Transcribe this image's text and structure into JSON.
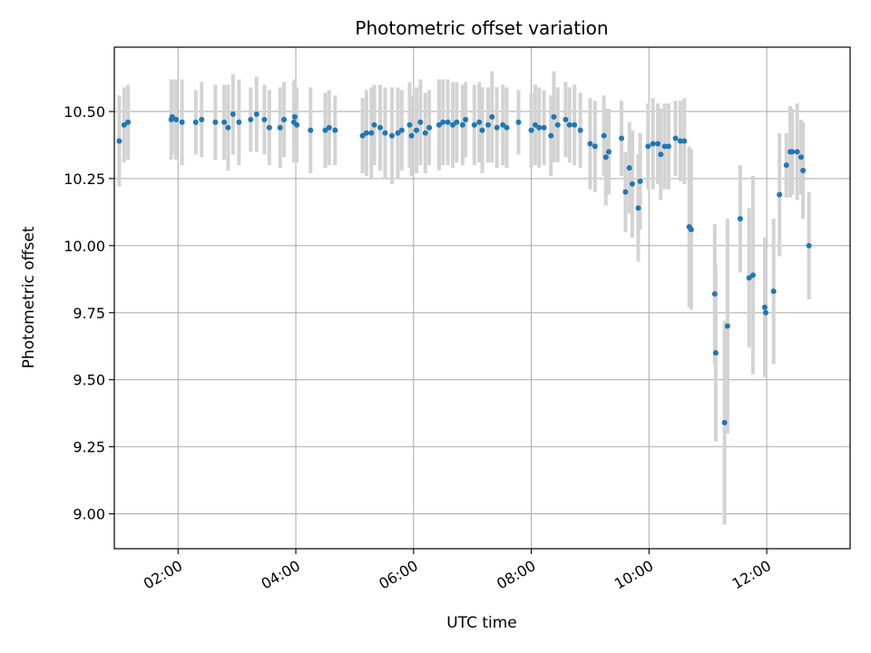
{
  "chart_data": {
    "type": "scatter",
    "title": "Photometric offset variation",
    "xlabel": "UTC time",
    "ylabel": "Photometric offset",
    "xlim": [
      "00:55",
      "13:25"
    ],
    "ylim": [
      8.87,
      10.74
    ],
    "x_ticks": [
      "02:00",
      "04:00",
      "06:00",
      "08:00",
      "10:00",
      "12:00"
    ],
    "y_ticks": [
      "9.00",
      "9.25",
      "9.50",
      "9.75",
      "10.00",
      "10.25",
      "10.50"
    ],
    "grid": true,
    "colors": {
      "point": "#1f77b4",
      "errorbar": "#d3d3d3",
      "grid": "#b0b0b0",
      "axes": "#000000"
    },
    "points": [
      {
        "x": "01:00",
        "y": 10.39,
        "err": 0.17
      },
      {
        "x": "01:05",
        "y": 10.45,
        "err": 0.14
      },
      {
        "x": "01:09",
        "y": 10.46,
        "err": 0.14
      },
      {
        "x": "01:53",
        "y": 10.47,
        "err": 0.15
      },
      {
        "x": "01:54",
        "y": 10.48,
        "err": 0.14
      },
      {
        "x": "01:58",
        "y": 10.47,
        "err": 0.15
      },
      {
        "x": "02:04",
        "y": 10.46,
        "err": 0.16
      },
      {
        "x": "02:18",
        "y": 10.46,
        "err": 0.12
      },
      {
        "x": "02:24",
        "y": 10.47,
        "err": 0.14
      },
      {
        "x": "02:38",
        "y": 10.46,
        "err": 0.14
      },
      {
        "x": "02:47",
        "y": 10.46,
        "err": 0.14
      },
      {
        "x": "02:51",
        "y": 10.44,
        "err": 0.16
      },
      {
        "x": "02:56",
        "y": 10.49,
        "err": 0.15
      },
      {
        "x": "03:02",
        "y": 10.46,
        "err": 0.16
      },
      {
        "x": "03:14",
        "y": 10.47,
        "err": 0.12
      },
      {
        "x": "03:20",
        "y": 10.49,
        "err": 0.14
      },
      {
        "x": "03:28",
        "y": 10.47,
        "err": 0.13
      },
      {
        "x": "03:33",
        "y": 10.44,
        "err": 0.14
      },
      {
        "x": "03:44",
        "y": 10.44,
        "err": 0.15
      },
      {
        "x": "03:48",
        "y": 10.47,
        "err": 0.14
      },
      {
        "x": "03:58",
        "y": 10.46,
        "err": 0.15
      },
      {
        "x": "03:59",
        "y": 10.48,
        "err": 0.14
      },
      {
        "x": "04:01",
        "y": 10.45,
        "err": 0.14
      },
      {
        "x": "04:15",
        "y": 10.43,
        "err": 0.16
      },
      {
        "x": "04:30",
        "y": 10.43,
        "err": 0.14
      },
      {
        "x": "04:34",
        "y": 10.44,
        "err": 0.14
      },
      {
        "x": "04:40",
        "y": 10.43,
        "err": 0.13
      },
      {
        "x": "05:08",
        "y": 10.41,
        "err": 0.14
      },
      {
        "x": "05:12",
        "y": 10.42,
        "err": 0.16
      },
      {
        "x": "05:17",
        "y": 10.42,
        "err": 0.17
      },
      {
        "x": "05:20",
        "y": 10.45,
        "err": 0.15
      },
      {
        "x": "05:26",
        "y": 10.44,
        "err": 0.16
      },
      {
        "x": "05:31",
        "y": 10.42,
        "err": 0.17
      },
      {
        "x": "05:38",
        "y": 10.41,
        "err": 0.18
      },
      {
        "x": "05:44",
        "y": 10.42,
        "err": 0.17
      },
      {
        "x": "05:48",
        "y": 10.43,
        "err": 0.15
      },
      {
        "x": "05:56",
        "y": 10.45,
        "err": 0.16
      },
      {
        "x": "05:58",
        "y": 10.41,
        "err": 0.15
      },
      {
        "x": "06:03",
        "y": 10.43,
        "err": 0.16
      },
      {
        "x": "06:07",
        "y": 10.46,
        "err": 0.16
      },
      {
        "x": "06:12",
        "y": 10.42,
        "err": 0.15
      },
      {
        "x": "06:16",
        "y": 10.44,
        "err": 0.14
      },
      {
        "x": "06:26",
        "y": 10.45,
        "err": 0.17
      },
      {
        "x": "06:30",
        "y": 10.46,
        "err": 0.16
      },
      {
        "x": "06:35",
        "y": 10.46,
        "err": 0.16
      },
      {
        "x": "06:40",
        "y": 10.45,
        "err": 0.16
      },
      {
        "x": "06:44",
        "y": 10.46,
        "err": 0.15
      },
      {
        "x": "06:50",
        "y": 10.45,
        "err": 0.15
      },
      {
        "x": "06:53",
        "y": 10.47,
        "err": 0.14
      },
      {
        "x": "07:02",
        "y": 10.45,
        "err": 0.15
      },
      {
        "x": "07:07",
        "y": 10.46,
        "err": 0.15
      },
      {
        "x": "07:10",
        "y": 10.43,
        "err": 0.16
      },
      {
        "x": "07:16",
        "y": 10.45,
        "err": 0.14
      },
      {
        "x": "07:20",
        "y": 10.48,
        "err": 0.17
      },
      {
        "x": "07:25",
        "y": 10.44,
        "err": 0.15
      },
      {
        "x": "07:31",
        "y": 10.45,
        "err": 0.15
      },
      {
        "x": "07:35",
        "y": 10.44,
        "err": 0.15
      },
      {
        "x": "07:47",
        "y": 10.46,
        "err": 0.12
      },
      {
        "x": "08:00",
        "y": 10.43,
        "err": 0.14
      },
      {
        "x": "08:04",
        "y": 10.45,
        "err": 0.15
      },
      {
        "x": "08:08",
        "y": 10.44,
        "err": 0.15
      },
      {
        "x": "08:13",
        "y": 10.44,
        "err": 0.14
      },
      {
        "x": "08:20",
        "y": 10.41,
        "err": 0.15
      },
      {
        "x": "08:23",
        "y": 10.48,
        "err": 0.17
      },
      {
        "x": "08:27",
        "y": 10.45,
        "err": 0.14
      },
      {
        "x": "08:35",
        "y": 10.47,
        "err": 0.14
      },
      {
        "x": "08:39",
        "y": 10.45,
        "err": 0.14
      },
      {
        "x": "08:44",
        "y": 10.45,
        "err": 0.15
      },
      {
        "x": "08:50",
        "y": 10.43,
        "err": 0.14
      },
      {
        "x": "09:00",
        "y": 10.38,
        "err": 0.17
      },
      {
        "x": "09:05",
        "y": 10.37,
        "err": 0.17
      },
      {
        "x": "09:14",
        "y": 10.41,
        "err": 0.15
      },
      {
        "x": "09:16",
        "y": 10.33,
        "err": 0.18
      },
      {
        "x": "09:19",
        "y": 10.35,
        "err": 0.16
      },
      {
        "x": "09:32",
        "y": 10.4,
        "err": 0.14
      },
      {
        "x": "09:36",
        "y": 10.2,
        "err": 0.15
      },
      {
        "x": "09:40",
        "y": 10.29,
        "err": 0.17
      },
      {
        "x": "09:43",
        "y": 10.23,
        "err": 0.2
      },
      {
        "x": "09:49",
        "y": 10.14,
        "err": 0.2
      },
      {
        "x": "09:51",
        "y": 10.24,
        "err": 0.18
      },
      {
        "x": "09:59",
        "y": 10.37,
        "err": 0.16
      },
      {
        "x": "10:04",
        "y": 10.38,
        "err": 0.17
      },
      {
        "x": "10:09",
        "y": 10.38,
        "err": 0.15
      },
      {
        "x": "10:12",
        "y": 10.34,
        "err": 0.17
      },
      {
        "x": "10:16",
        "y": 10.37,
        "err": 0.16
      },
      {
        "x": "10:20",
        "y": 10.37,
        "err": 0.16
      },
      {
        "x": "10:27",
        "y": 10.4,
        "err": 0.14
      },
      {
        "x": "10:32",
        "y": 10.39,
        "err": 0.15
      },
      {
        "x": "10:36",
        "y": 10.39,
        "err": 0.16
      },
      {
        "x": "10:41",
        "y": 10.07,
        "err": 0.3
      },
      {
        "x": "10:43",
        "y": 10.06,
        "err": 0.3
      },
      {
        "x": "11:07",
        "y": 9.82,
        "err": 0.26
      },
      {
        "x": "11:08",
        "y": 9.6,
        "err": 0.33
      },
      {
        "x": "11:17",
        "y": 9.34,
        "err": 0.38
      },
      {
        "x": "11:20",
        "y": 9.7,
        "err": 0.4
      },
      {
        "x": "11:33",
        "y": 10.1,
        "err": 0.2
      },
      {
        "x": "11:42",
        "y": 9.88,
        "err": 0.26
      },
      {
        "x": "11:46",
        "y": 9.89,
        "err": 0.37
      },
      {
        "x": "11:58",
        "y": 9.77,
        "err": 0.26
      },
      {
        "x": "11:59",
        "y": 9.75,
        "err": 0.24
      },
      {
        "x": "12:07",
        "y": 9.83,
        "err": 0.27
      },
      {
        "x": "12:13",
        "y": 10.19,
        "err": 0.23
      },
      {
        "x": "12:20",
        "y": 10.3,
        "err": 0.12
      },
      {
        "x": "12:24",
        "y": 10.35,
        "err": 0.17
      },
      {
        "x": "12:26",
        "y": 10.35,
        "err": 0.16
      },
      {
        "x": "12:31",
        "y": 10.35,
        "err": 0.18
      },
      {
        "x": "12:35",
        "y": 10.33,
        "err": 0.14
      },
      {
        "x": "12:37",
        "y": 10.28,
        "err": 0.18
      },
      {
        "x": "12:43",
        "y": 10.0,
        "err": 0.2
      }
    ]
  }
}
